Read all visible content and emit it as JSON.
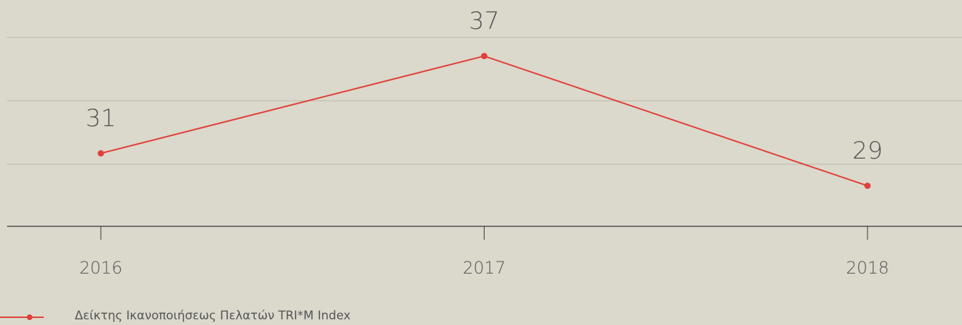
{
  "chart_data": {
    "type": "line",
    "categories": [
      "2016",
      "2017",
      "2018"
    ],
    "series": [
      {
        "name": "Δείκτης Ικανοποιήσεως Πελατών TRI*M Index",
        "color": "#e0403a",
        "values": [
          31,
          37,
          29
        ]
      }
    ],
    "ylim": [
      26.5,
      38.5
    ]
  }
}
